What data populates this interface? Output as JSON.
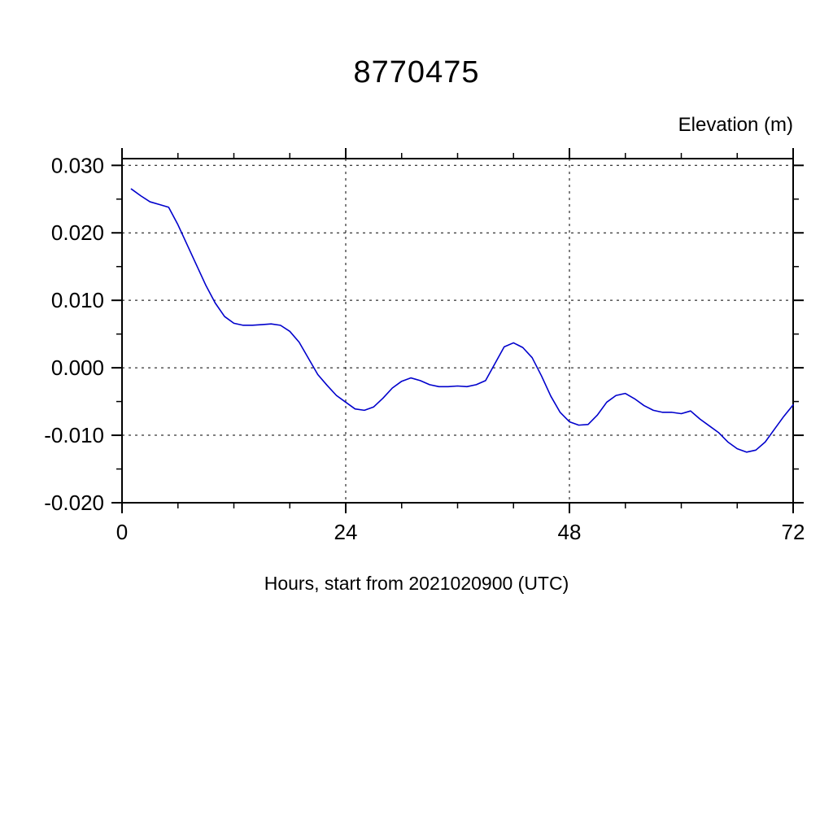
{
  "chart_data": {
    "type": "line",
    "title": "8770475",
    "ylabel": "Elevation (m)",
    "xlabel": "Hours, start from 2021020900 (UTC)",
    "xlim": [
      0,
      72
    ],
    "ylim": [
      -0.02,
      0.031
    ],
    "x_major_ticks": [
      0,
      24,
      48,
      72
    ],
    "x_tick_labels": [
      "0",
      "24",
      "48",
      "72"
    ],
    "x_minor_step": 6,
    "y_major_ticks": [
      -0.02,
      -0.01,
      0.0,
      0.01,
      0.02,
      0.03
    ],
    "y_tick_labels": [
      "-0.020",
      "-0.010",
      "0.000",
      "0.010",
      "0.020",
      "0.030"
    ],
    "y_minor_step": 0.005,
    "grid": "dashed-at-major-ticks",
    "legend": "none",
    "line_color": "#0000cc",
    "frame_color": "#000000",
    "series": [
      {
        "name": "elevation",
        "x": [
          1,
          2,
          3,
          4,
          5,
          6,
          7,
          8,
          9,
          10,
          11,
          12,
          13,
          14,
          15,
          16,
          17,
          18,
          19,
          20,
          21,
          22,
          23,
          24,
          25,
          26,
          27,
          28,
          29,
          30,
          31,
          32,
          33,
          34,
          35,
          36,
          37,
          38,
          39,
          40,
          41,
          42,
          43,
          44,
          45,
          46,
          47,
          48,
          49,
          50,
          51,
          52,
          53,
          54,
          55,
          56,
          57,
          58,
          59,
          60,
          61,
          62,
          63,
          64,
          65,
          66,
          67,
          68,
          69,
          70,
          71,
          72
        ],
        "y": [
          0.0265,
          0.0255,
          0.0246,
          0.0242,
          0.0238,
          0.0212,
          0.0182,
          0.0152,
          0.0122,
          0.0096,
          0.0076,
          0.0066,
          0.0063,
          0.0063,
          0.0064,
          0.0065,
          0.0063,
          0.0054,
          0.0038,
          0.0014,
          -0.001,
          -0.0026,
          -0.0041,
          -0.0051,
          -0.0061,
          -0.0063,
          -0.0058,
          -0.0045,
          -0.003,
          -0.002,
          -0.0015,
          -0.0019,
          -0.0025,
          -0.0028,
          -0.0028,
          -0.0027,
          -0.0028,
          -0.0025,
          -0.0019,
          0.0006,
          0.0031,
          0.0037,
          0.003,
          0.0015,
          -0.0012,
          -0.0042,
          -0.0066,
          -0.008,
          -0.0085,
          -0.0084,
          -0.007,
          -0.0051,
          -0.0041,
          -0.0038,
          -0.0046,
          -0.0056,
          -0.0063,
          -0.0066,
          -0.0066,
          -0.0068,
          -0.0064,
          -0.0076,
          -0.0086,
          -0.0096,
          -0.011,
          -0.012,
          -0.0125,
          -0.0122,
          -0.011,
          -0.0091,
          -0.0072,
          -0.0055
        ]
      }
    ]
  }
}
